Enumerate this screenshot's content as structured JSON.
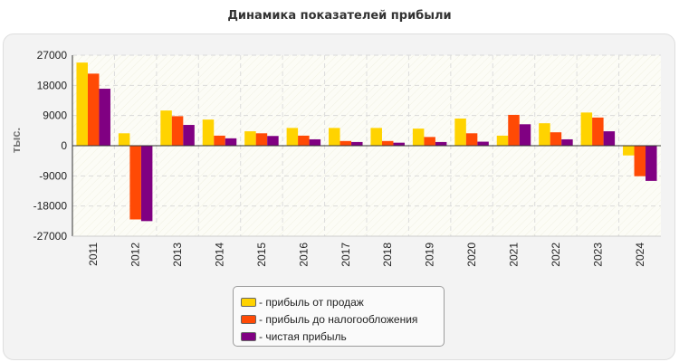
{
  "page": {
    "title": "Динамика показателей прибыли"
  },
  "legend": {
    "items": [
      {
        "label": "- прибыль от продаж",
        "color": "#ffd300"
      },
      {
        "label": "- прибыль до налогообложения",
        "color": "#ff4a05"
      },
      {
        "label": "- чистая прибыль",
        "color": "#800082"
      }
    ]
  },
  "chart_data": {
    "type": "bar",
    "title": "Динамика показателей прибыли",
    "xlabel": "",
    "ylabel": "тыс.",
    "ylim": [
      -27000,
      27000
    ],
    "yticks": [
      27000,
      18000,
      9000,
      0,
      -9000,
      -18000,
      -27000
    ],
    "categories": [
      "2011",
      "2012",
      "2013",
      "2014",
      "2015",
      "2016",
      "2017",
      "2018",
      "2019",
      "2020",
      "2021",
      "2022",
      "2023",
      "2024"
    ],
    "series": [
      {
        "name": "- прибыль от продаж",
        "color": "#ffd300",
        "values": [
          24800,
          3700,
          10500,
          7800,
          4300,
          5300,
          5300,
          5300,
          5100,
          8100,
          3000,
          6700,
          9900,
          -2900
        ]
      },
      {
        "name": "- прибыль до налогообложения",
        "color": "#ff4a05",
        "values": [
          21500,
          -22000,
          8800,
          3000,
          3700,
          3000,
          1400,
          1400,
          2600,
          3700,
          9200,
          4000,
          8400,
          -9100
        ]
      },
      {
        "name": "- чистая прибыль",
        "color": "#800082",
        "values": [
          17000,
          -22500,
          6200,
          2200,
          2900,
          1900,
          1100,
          900,
          1100,
          1200,
          6400,
          1900,
          4300,
          -10500
        ]
      }
    ],
    "grid": true,
    "legend_position": "bottom"
  }
}
